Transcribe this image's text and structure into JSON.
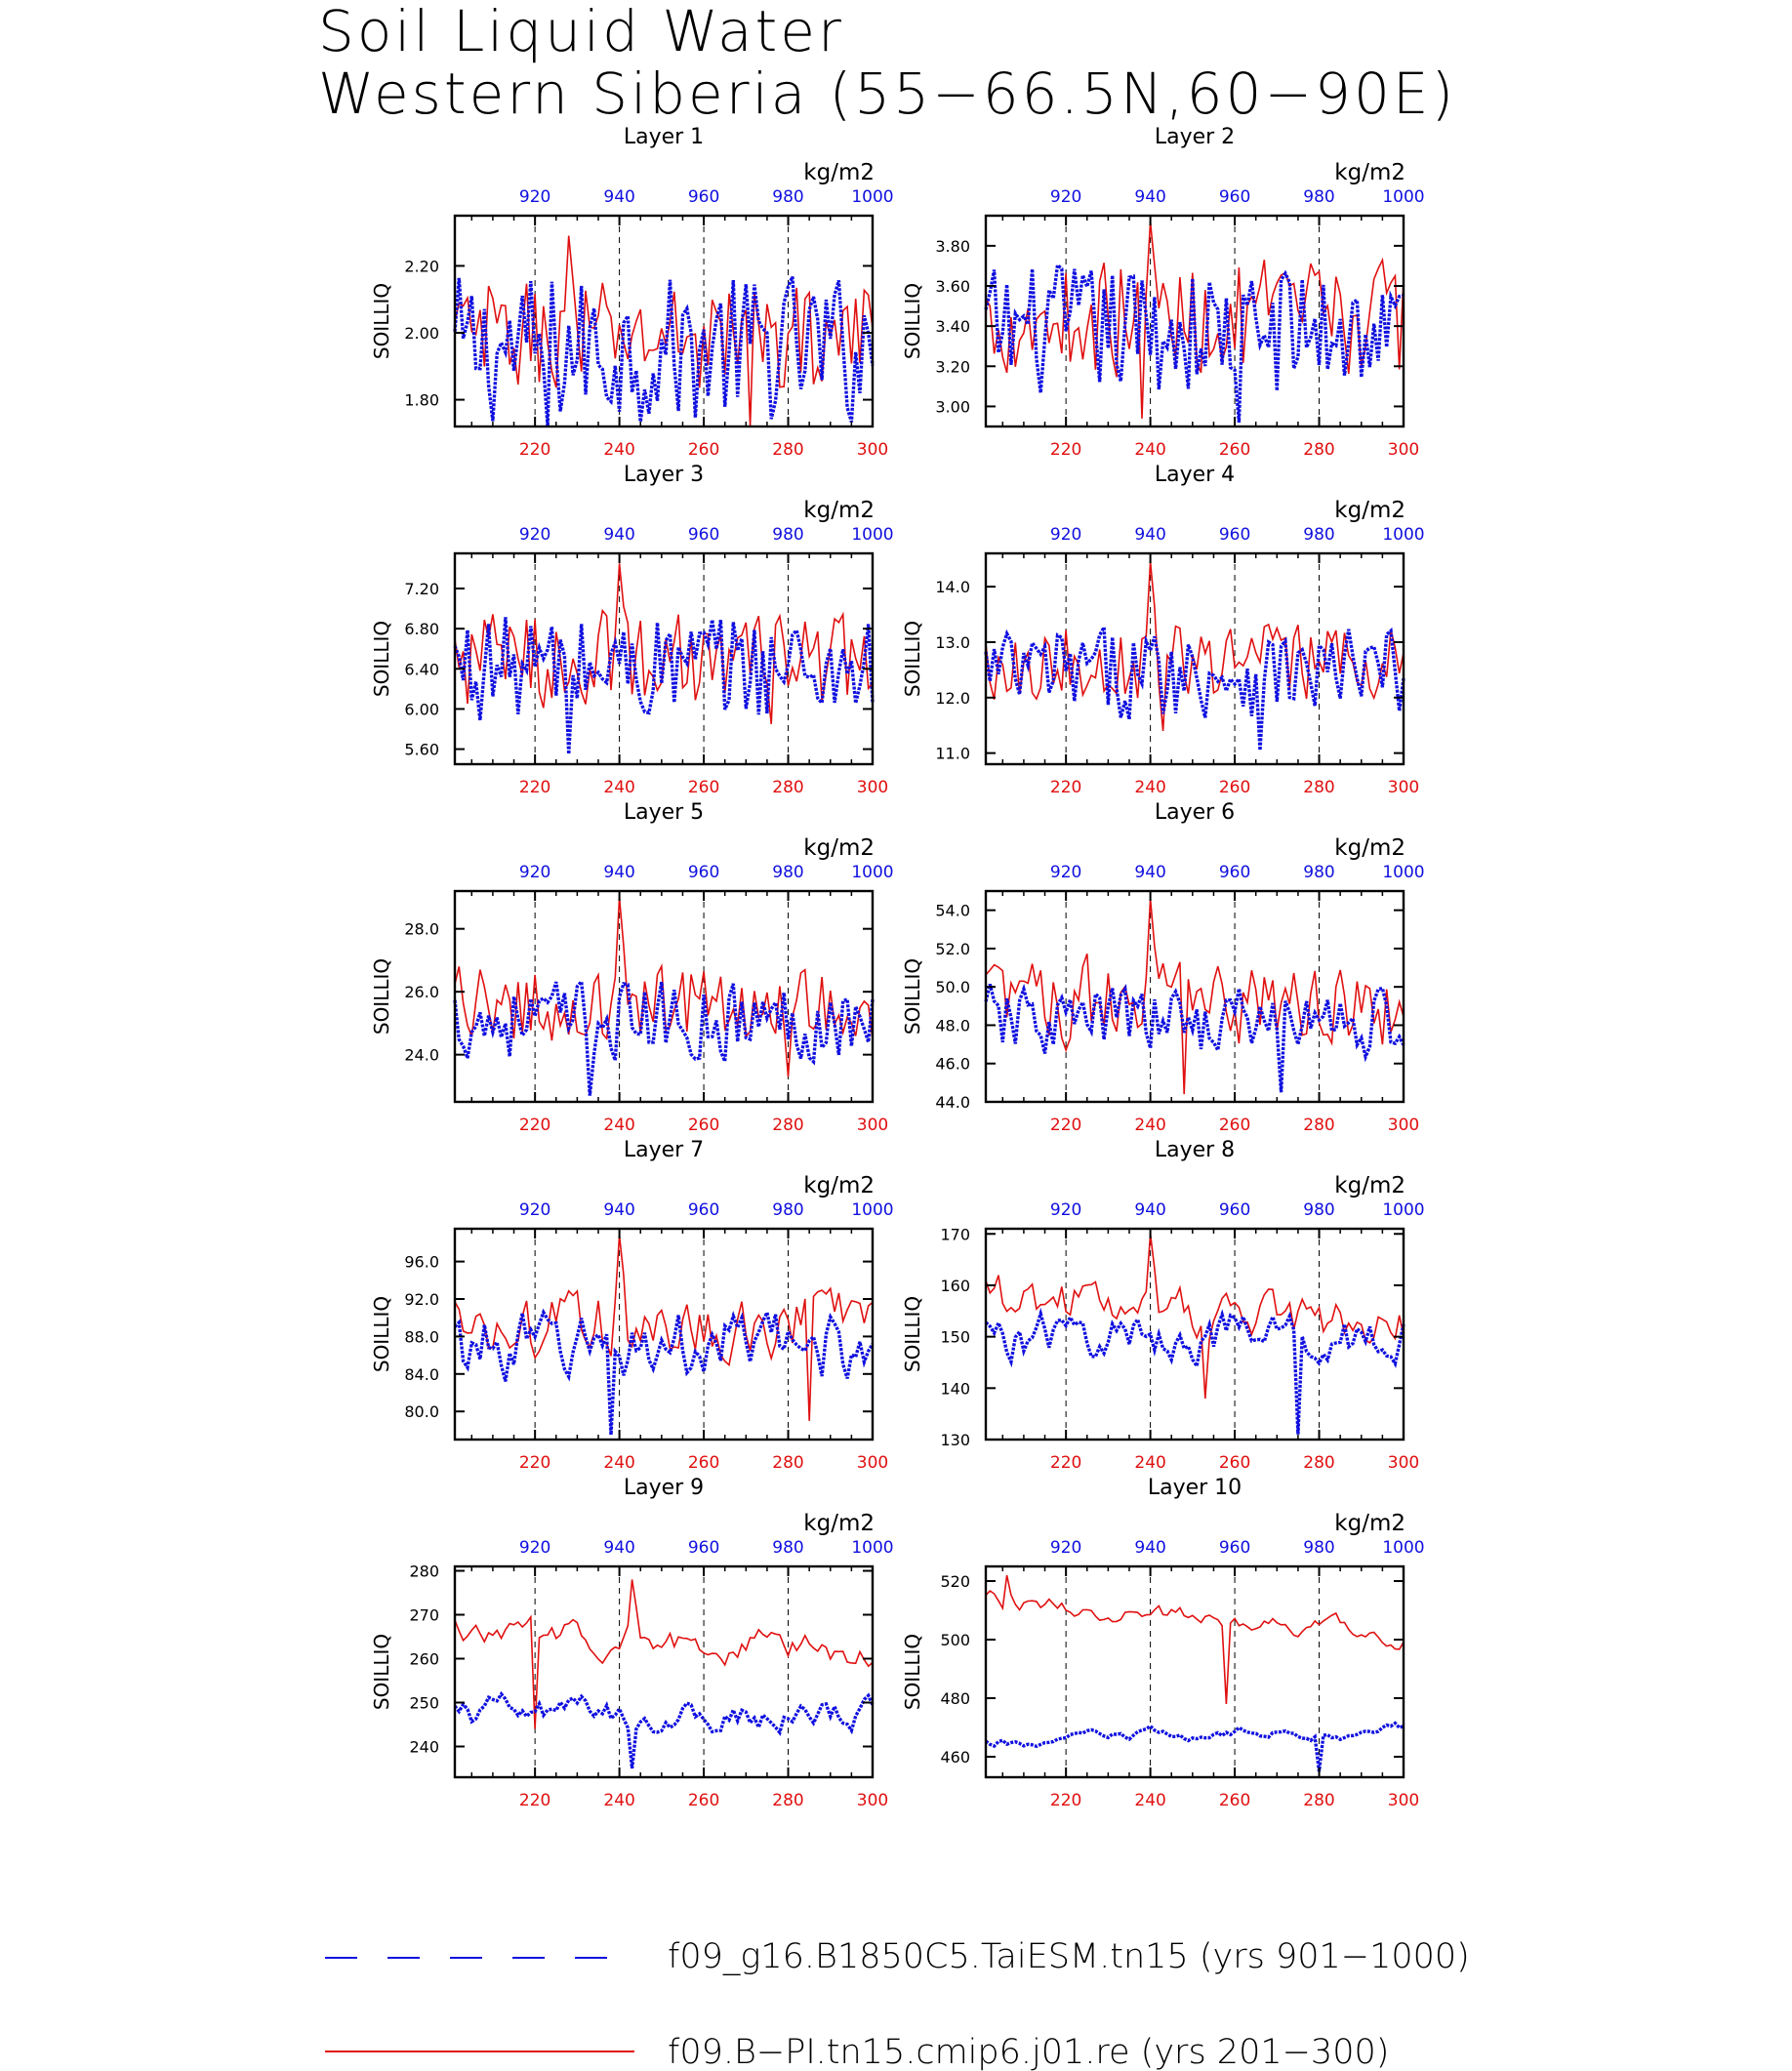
{
  "title": {
    "line1": "Soil Liquid Water",
    "line2": "Western Siberia (55−66.5N,60−90E)"
  },
  "colors": {
    "taiesm": "#1010e0",
    "cmip6": "#e01010",
    "axis": "#000000"
  },
  "chart_data": {
    "type": "line",
    "ylabel": "SOILLIQ",
    "units": "kg/m2",
    "bottom_axis": {
      "range": [
        201,
        300
      ],
      "ticks": [
        220,
        240,
        260,
        280,
        300
      ],
      "color": "red"
    },
    "top_axis": {
      "range": [
        901,
        1000
      ],
      "ticks": [
        920,
        940,
        960,
        980,
        1000
      ],
      "color": "blue"
    },
    "legend": [
      {
        "label": "f09_g16.B1850C5.TaiESM.tn15 (yrs 901−1000)",
        "style": "dashed",
        "color": "blue"
      },
      {
        "label": "f09.B−PI.tn15.cmip6.j01.re (yrs 201−300)",
        "style": "solid",
        "color": "red"
      }
    ],
    "panels": [
      {
        "title": "Layer 1",
        "ylim": [
          1.72,
          2.35
        ],
        "yticks": [
          "1.80",
          "2.00",
          "2.20"
        ],
        "blue_mean": 1.95,
        "blue_amp": 0.15,
        "red_mean": 1.99,
        "red_amp": 0.11,
        "peak": 2.29,
        "peak_series": "red",
        "peak_x": 228,
        "blue_min": 1.69,
        "red_min": 1.65,
        "blue_trend": 0,
        "red_trend": 0,
        "smooth": 0.1
      },
      {
        "title": "Layer 2",
        "ylim": [
          2.9,
          3.95
        ],
        "yticks": [
          "3.00",
          "3.20",
          "3.40",
          "3.60",
          "3.80"
        ],
        "blue_mean": 3.38,
        "blue_amp": 0.22,
        "red_mean": 3.44,
        "red_amp": 0.19,
        "peak": 3.92,
        "peak_series": "red",
        "peak_x": 240,
        "blue_min": 2.92,
        "red_min": 2.94,
        "blue_trend": 0,
        "red_trend": 0,
        "smooth": 0.1
      },
      {
        "title": "Layer 3",
        "ylim": [
          5.45,
          7.55
        ],
        "yticks": [
          "5.60",
          "6.00",
          "6.40",
          "6.80",
          "7.20"
        ],
        "blue_mean": 6.42,
        "blue_amp": 0.36,
        "red_mean": 6.5,
        "red_amp": 0.32,
        "peak": 7.45,
        "peak_series": "red",
        "peak_x": 240,
        "blue_min": 5.55,
        "red_min": 5.85,
        "blue_trend": 0,
        "red_trend": 0,
        "smooth": 0.1
      },
      {
        "title": "Layer 4",
        "ylim": [
          10.8,
          14.6
        ],
        "yticks": [
          "11.0",
          "12.0",
          "13.0",
          "14.0"
        ],
        "blue_mean": 12.45,
        "blue_amp": 0.55,
        "red_mean": 12.65,
        "red_amp": 0.45,
        "peak": 14.45,
        "peak_series": "red",
        "peak_x": 240,
        "blue_min": 11.05,
        "red_min": 11.4,
        "blue_trend": 0,
        "red_trend": 0,
        "smooth": 0.1
      },
      {
        "title": "Layer 5",
        "ylim": [
          22.5,
          29.2
        ],
        "yticks": [
          "24.0",
          "26.0",
          "28.0"
        ],
        "blue_mean": 25.1,
        "blue_amp": 0.9,
        "red_mean": 25.6,
        "red_amp": 0.85,
        "peak": 29.0,
        "peak_series": "red",
        "peak_x": 240,
        "blue_min": 22.7,
        "red_min": 23.3,
        "blue_trend": 0,
        "red_trend": 0,
        "smooth": 0.2
      },
      {
        "title": "Layer 6",
        "ylim": [
          44.0,
          55.0
        ],
        "yticks": [
          "44.0",
          "46.0",
          "48.0",
          "50.0",
          "52.0",
          "54.0"
        ],
        "blue_mean": 48.2,
        "blue_amp": 1.6,
        "red_mean": 49.1,
        "red_amp": 1.8,
        "peak": 54.6,
        "peak_series": "red",
        "peak_x": 240,
        "blue_min": 44.5,
        "red_min": 44.4,
        "blue_trend": 0,
        "red_trend": -0.5,
        "smooth": 0.35
      },
      {
        "title": "Layer 7",
        "ylim": [
          77.0,
          99.5
        ],
        "yticks": [
          "80.0",
          "84.0",
          "88.0",
          "92.0",
          "96.0"
        ],
        "blue_mean": 87.0,
        "blue_amp": 3.3,
        "red_mean": 89.5,
        "red_amp": 3.2,
        "peak": 98.8,
        "peak_series": "red",
        "peak_x": 240,
        "blue_min": 77.5,
        "red_min": 79.0,
        "blue_trend": 0,
        "red_trend": 0,
        "smooth": 0.45
      },
      {
        "title": "Layer 8",
        "ylim": [
          130,
          171
        ],
        "yticks": [
          "130",
          "140",
          "150",
          "160",
          "170"
        ],
        "blue_mean": 150.0,
        "blue_amp": 5.0,
        "red_mean": 155.0,
        "red_amp": 4.5,
        "peak": 170.0,
        "peak_series": "red",
        "peak_x": 240,
        "blue_min": 131.0,
        "red_min": 138.0,
        "blue_trend": 0,
        "red_trend": -6,
        "smooth": 0.55
      },
      {
        "title": "Layer 9",
        "ylim": [
          233,
          281
        ],
        "yticks": [
          "240",
          "250",
          "260",
          "270",
          "280"
        ],
        "blue_mean": 247.0,
        "blue_amp": 6.5,
        "red_mean": 264.0,
        "red_amp": 5.0,
        "peak": 278.0,
        "peak_series": "red",
        "peak_x": 243,
        "blue_min": 235.0,
        "red_min": 244.0,
        "blue_trend": 0,
        "red_trend": -5,
        "smooth": 0.75
      },
      {
        "title": "Layer 10",
        "ylim": [
          453,
          525
        ],
        "yticks": [
          "460",
          "480",
          "500",
          "520"
        ],
        "blue_mean": 467.0,
        "blue_amp": 6.0,
        "red_mean": 507.0,
        "red_amp": 6.0,
        "peak": 522.0,
        "peak_series": "red",
        "peak_x": 206,
        "blue_min": 455.0,
        "red_min": 478.0,
        "blue_trend": 6,
        "red_trend": -12,
        "smooth": 0.85
      }
    ]
  }
}
